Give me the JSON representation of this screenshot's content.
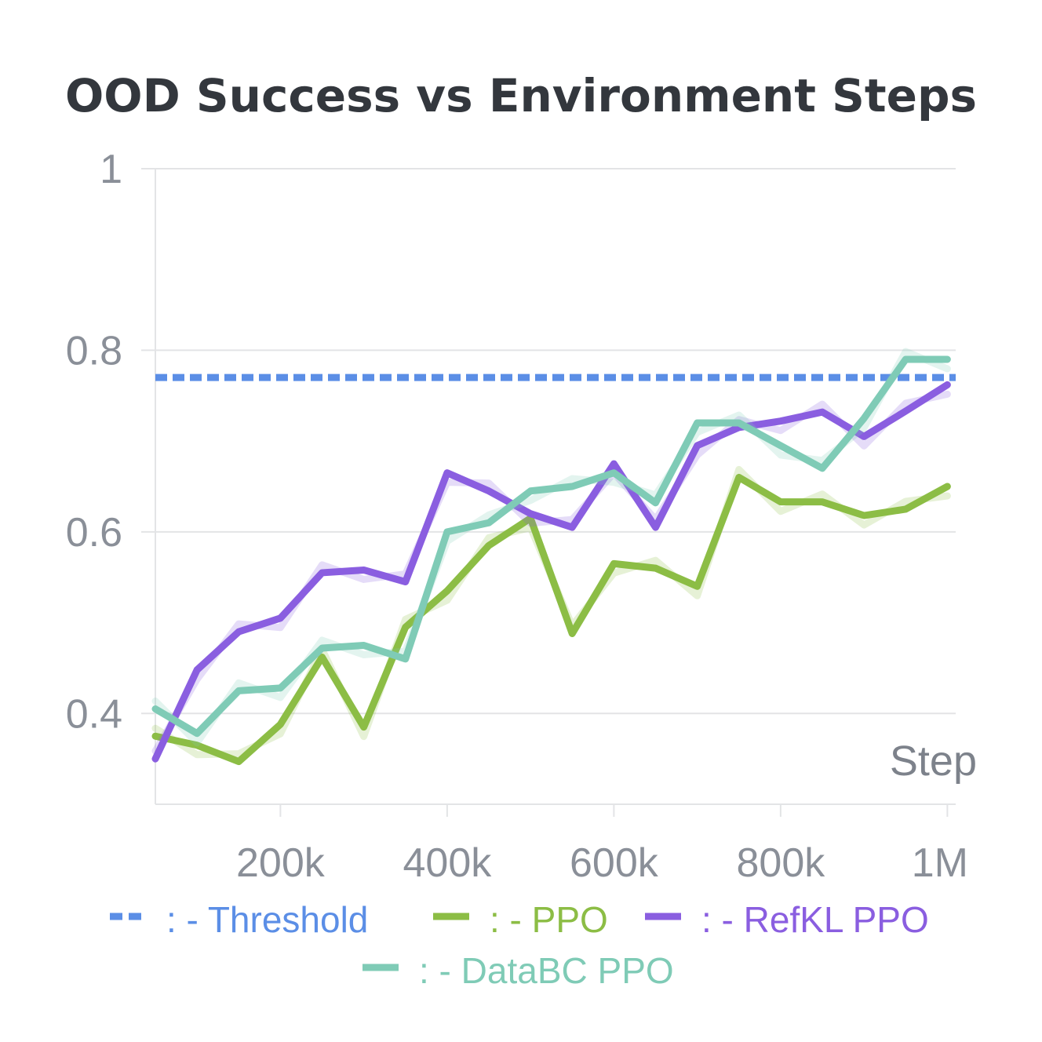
{
  "chart_data": {
    "type": "line",
    "title": "OOD Success vs Environment Steps",
    "xlabel": "Step",
    "ylabel": "",
    "xlim": [
      50000,
      1010000
    ],
    "ylim": [
      0.3,
      1.0
    ],
    "x_ticks": [
      {
        "value": 200000,
        "label": "200k"
      },
      {
        "value": 400000,
        "label": "400k"
      },
      {
        "value": 600000,
        "label": "600k"
      },
      {
        "value": 800000,
        "label": "800k"
      },
      {
        "value": 1000000,
        "label": "1M"
      }
    ],
    "y_ticks": [
      {
        "value": 0.4,
        "label": "0.4"
      },
      {
        "value": 0.6,
        "label": "0.6"
      },
      {
        "value": 0.8,
        "label": "0.8"
      },
      {
        "value": 1.0,
        "label": "1"
      }
    ],
    "grid": true,
    "legend_position": "bottom",
    "threshold": {
      "name": ": - Threshold",
      "value": 0.77,
      "color": "#5b8ee6",
      "style": "dashed"
    },
    "x": [
      50000,
      100000,
      150000,
      200000,
      250000,
      300000,
      350000,
      400000,
      450000,
      500000,
      550000,
      600000,
      650000,
      700000,
      750000,
      800000,
      850000,
      900000,
      950000,
      1000000
    ],
    "series": [
      {
        "name": ": - PPO",
        "color": "#8cbd45",
        "values": [
          0.375,
          0.365,
          0.347,
          0.388,
          0.462,
          0.385,
          0.495,
          0.535,
          0.585,
          0.615,
          0.488,
          0.565,
          0.56,
          0.54,
          0.66,
          0.633,
          0.633,
          0.618,
          0.625,
          0.65
        ]
      },
      {
        "name": ": - RefKL PPO",
        "color": "#8a5ee0",
        "values": [
          0.35,
          0.448,
          0.49,
          0.505,
          0.555,
          0.558,
          0.545,
          0.665,
          0.645,
          0.62,
          0.605,
          0.675,
          0.605,
          0.695,
          0.715,
          0.722,
          0.732,
          0.705,
          0.733,
          0.762
        ]
      },
      {
        "name": ": - DataBC PPO",
        "color": "#7fcbb6",
        "values": [
          0.405,
          0.378,
          0.425,
          0.428,
          0.472,
          0.475,
          0.46,
          0.6,
          0.61,
          0.645,
          0.65,
          0.665,
          0.632,
          0.72,
          0.72,
          0.695,
          0.67,
          0.725,
          0.79,
          0.79
        ]
      }
    ]
  }
}
